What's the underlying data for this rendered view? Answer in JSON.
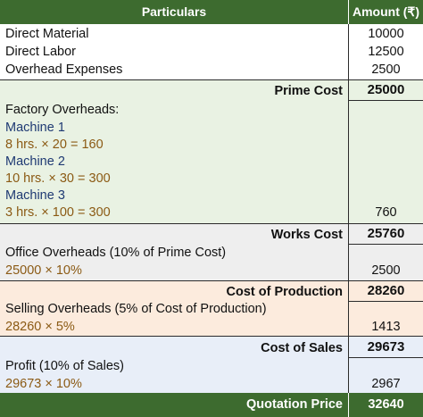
{
  "header": {
    "particulars": "Particulars",
    "amount": "Amount (₹)"
  },
  "direct": [
    {
      "label": "Direct Material",
      "value": "10000"
    },
    {
      "label": "Direct Labor",
      "value": "12500"
    },
    {
      "label": "Overhead Expenses",
      "value": "2500"
    }
  ],
  "prime": {
    "label": "Prime Cost",
    "value": "25000",
    "factory_title": "Factory Overheads:",
    "machines": [
      {
        "name": "Machine 1",
        "calc": "8 hrs. × 20 = 160"
      },
      {
        "name": "Machine 2",
        "calc": "10 hrs. × 30 = 300"
      },
      {
        "name": "Machine 3",
        "calc": "3 hrs. × 100 = 300"
      }
    ],
    "factory_total": "760"
  },
  "works": {
    "label": "Works Cost",
    "value": "25760",
    "office_title": "Office Overheads (10% of Prime Cost)",
    "office_calc": "25000 × 10%",
    "office_total": "2500"
  },
  "production": {
    "label": "Cost of Production",
    "value": "28260",
    "selling_title": "Selling Overheads (5% of Cost of Production)",
    "selling_calc": "28260 × 5%",
    "selling_total": "1413"
  },
  "sales": {
    "label": "Cost of Sales",
    "value": "29673",
    "profit_title": "Profit (10% of Sales)",
    "profit_calc": "29673 × 10%",
    "profit_total": "2967"
  },
  "footer": {
    "label": "Quotation Price",
    "value": "32640"
  },
  "colors": {
    "header_green": "#3d6b2f",
    "prime_bg": "#e9f2e3",
    "works_bg": "#eeeeee",
    "production_bg": "#fcebdd",
    "sales_bg": "#e8eef8",
    "machine_blue": "#1f3a73",
    "calc_brown": "#8b5a14"
  }
}
